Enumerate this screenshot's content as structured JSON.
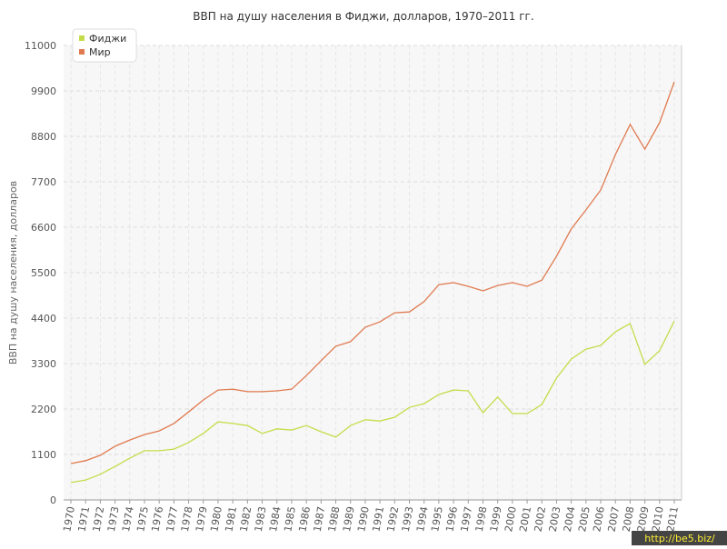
{
  "chart_data": {
    "type": "line",
    "title": "ВВП на душу населения в Фиджи, долларов, 1970–2011 гг.",
    "y_label": "ВВП на душу населения, долларов",
    "watermark": "http://be5.biz/",
    "categories": [
      "1970",
      "1971",
      "1972",
      "1973",
      "1974",
      "1975",
      "1976",
      "1977",
      "1978",
      "1979",
      "1980",
      "1981",
      "1982",
      "1983",
      "1984",
      "1985",
      "1986",
      "1987",
      "1988",
      "1989",
      "1990",
      "1991",
      "1992",
      "1993",
      "1994",
      "1995",
      "1996",
      "1997",
      "1998",
      "1999",
      "2000",
      "2001",
      "2002",
      "2003",
      "2004",
      "2005",
      "2006",
      "2007",
      "2008",
      "2009",
      "2010",
      "2011"
    ],
    "series": [
      {
        "name": "Фиджи",
        "color": "#c5dc4a",
        "values": [
          420,
          480,
          620,
          810,
          1010,
          1190,
          1190,
          1230,
          1390,
          1610,
          1890,
          1850,
          1800,
          1610,
          1720,
          1690,
          1800,
          1650,
          1520,
          1800,
          1940,
          1910,
          2000,
          2240,
          2330,
          2550,
          2660,
          2640,
          2110,
          2490,
          2090,
          2090,
          2310,
          2950,
          3410,
          3650,
          3740,
          4070,
          4270,
          3280,
          3610,
          4330
        ]
      },
      {
        "name": "Мир",
        "color": "#e07a50",
        "values": [
          880,
          950,
          1080,
          1300,
          1450,
          1580,
          1670,
          1850,
          2130,
          2420,
          2660,
          2680,
          2620,
          2620,
          2640,
          2680,
          3010,
          3370,
          3720,
          3830,
          4180,
          4310,
          4530,
          4550,
          4800,
          5210,
          5260,
          5170,
          5060,
          5190,
          5260,
          5170,
          5320,
          5900,
          6560,
          7020,
          7500,
          8360,
          9090,
          8490,
          9130,
          10120
        ]
      }
    ],
    "ylim": [
      0,
      11000
    ],
    "yticks": [
      0,
      1100,
      2200,
      3300,
      4400,
      5500,
      6600,
      7700,
      8800,
      9900,
      11000
    ],
    "grid": true
  }
}
